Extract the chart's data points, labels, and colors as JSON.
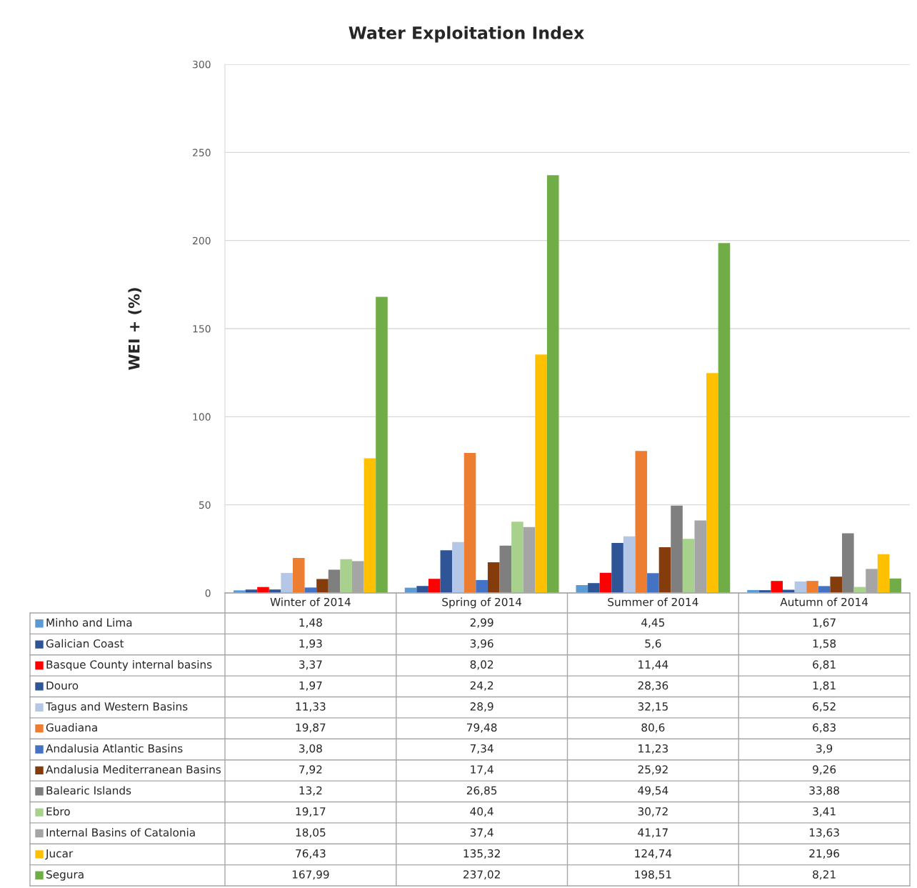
{
  "chart_data": {
    "type": "bar",
    "title": "Water Exploitation Index",
    "ylabel": "WEI + (%)",
    "categories": [
      "Winter of 2014",
      "Spring of 2014",
      "Summer of 2014",
      "Autumn of 2014"
    ],
    "ylim": [
      0,
      300
    ],
    "yticks": [
      0,
      50,
      100,
      150,
      200,
      250,
      300
    ],
    "grid": "y",
    "legend": "bottom",
    "series": [
      {
        "name": "Minho and Lima",
        "color": "#5b9bd5",
        "values": [
          1.48,
          2.99,
          4.45,
          1.67
        ],
        "value_labels": [
          "1,48",
          "2,99",
          "4,45",
          "1,67"
        ]
      },
      {
        "name": "Galician Coast",
        "color": "#2f5597",
        "values": [
          1.93,
          3.96,
          5.6,
          1.58
        ],
        "value_labels": [
          "1,93",
          "3,96",
          "5,6",
          "1,58"
        ]
      },
      {
        "name": "Basque County internal basins",
        "color": "#ff0000",
        "values": [
          3.37,
          8.02,
          11.44,
          6.81
        ],
        "value_labels": [
          "3,37",
          "8,02",
          "11,44",
          "6,81"
        ]
      },
      {
        "name": "Douro",
        "color": "#2f5597",
        "values": [
          1.97,
          24.2,
          28.36,
          1.81
        ],
        "value_labels": [
          "1,97",
          "24,2",
          "28,36",
          "1,81"
        ]
      },
      {
        "name": "Tagus and Western Basins",
        "color": "#b4c7e7",
        "values": [
          11.33,
          28.9,
          32.15,
          6.52
        ],
        "value_labels": [
          "11,33",
          "28,9",
          "32,15",
          "6,52"
        ]
      },
      {
        "name": "Guadiana",
        "color": "#ed7d31",
        "values": [
          19.87,
          79.48,
          80.6,
          6.83
        ],
        "value_labels": [
          "19,87",
          "79,48",
          "80,6",
          "6,83"
        ]
      },
      {
        "name": "Andalusia Atlantic Basins",
        "color": "#4472c4",
        "values": [
          3.08,
          7.34,
          11.23,
          3.9
        ],
        "value_labels": [
          "3,08",
          "7,34",
          "11,23",
          "3,9"
        ]
      },
      {
        "name": "Andalusia Mediterranean Basins",
        "color": "#843c0c",
        "values": [
          7.92,
          17.4,
          25.92,
          9.26
        ],
        "value_labels": [
          "7,92",
          "17,4",
          "25,92",
          "9,26"
        ]
      },
      {
        "name": "Balearic Islands",
        "color": "#7f7f7f",
        "values": [
          13.2,
          26.85,
          49.54,
          33.88
        ],
        "value_labels": [
          "13,2",
          "26,85",
          "49,54",
          "33,88"
        ]
      },
      {
        "name": "Ebro",
        "color": "#a9d18e",
        "values": [
          19.17,
          40.4,
          30.72,
          3.41
        ],
        "value_labels": [
          "19,17",
          "40,4",
          "30,72",
          "3,41"
        ]
      },
      {
        "name": "Internal Basins of Catalonia",
        "color": "#a5a5a5",
        "values": [
          18.05,
          37.4,
          41.17,
          13.63
        ],
        "value_labels": [
          "18,05",
          "37,4",
          "41,17",
          "13,63"
        ]
      },
      {
        "name": "Jucar",
        "color": "#ffc000",
        "values": [
          76.43,
          135.32,
          124.74,
          21.96
        ],
        "value_labels": [
          "76,43",
          "135,32",
          "124,74",
          "21,96"
        ]
      },
      {
        "name": "Segura",
        "color": "#70ad47",
        "values": [
          167.99,
          237.02,
          198.51,
          8.21
        ],
        "value_labels": [
          "167,99",
          "237,02",
          "198,51",
          "8,21"
        ]
      }
    ]
  }
}
